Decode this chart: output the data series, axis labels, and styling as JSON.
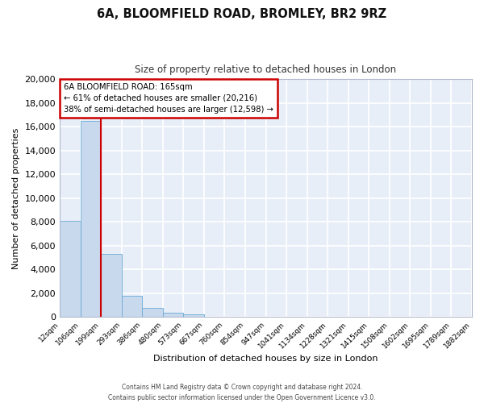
{
  "title": "6A, BLOOMFIELD ROAD, BROMLEY, BR2 9RZ",
  "subtitle": "Size of property relative to detached houses in London",
  "xlabel": "Distribution of detached houses by size in London",
  "ylabel": "Number of detached properties",
  "bar_color": "#c8d9ee",
  "bar_edge_color": "#6aaad4",
  "background_color": "#e8eef8",
  "fig_background": "#ffffff",
  "grid_color": "#ffffff",
  "bin_labels": [
    "12sqm",
    "106sqm",
    "199sqm",
    "293sqm",
    "386sqm",
    "480sqm",
    "573sqm",
    "667sqm",
    "760sqm",
    "854sqm",
    "947sqm",
    "1041sqm",
    "1134sqm",
    "1228sqm",
    "1321sqm",
    "1415sqm",
    "1508sqm",
    "1602sqm",
    "1695sqm",
    "1789sqm",
    "1882sqm"
  ],
  "bar_heights": [
    8100,
    16500,
    5300,
    1800,
    750,
    350,
    200,
    0,
    0,
    0,
    0,
    0,
    0,
    0,
    0,
    0,
    0,
    0,
    0,
    0,
    0
  ],
  "ylim": [
    0,
    20000
  ],
  "yticks": [
    0,
    2000,
    4000,
    6000,
    8000,
    10000,
    12000,
    14000,
    16000,
    18000,
    20000
  ],
  "vline_x": 2,
  "vline_color": "#cc0000",
  "annotation_title": "6A BLOOMFIELD ROAD: 165sqm",
  "annotation_line1": "← 61% of detached houses are smaller (20,216)",
  "annotation_line2": "38% of semi-detached houses are larger (12,598) →",
  "annotation_box_color": "#ffffff",
  "annotation_box_edge": "#cc0000",
  "footer1": "Contains HM Land Registry data © Crown copyright and database right 2024.",
  "footer2": "Contains public sector information licensed under the Open Government Licence v3.0."
}
